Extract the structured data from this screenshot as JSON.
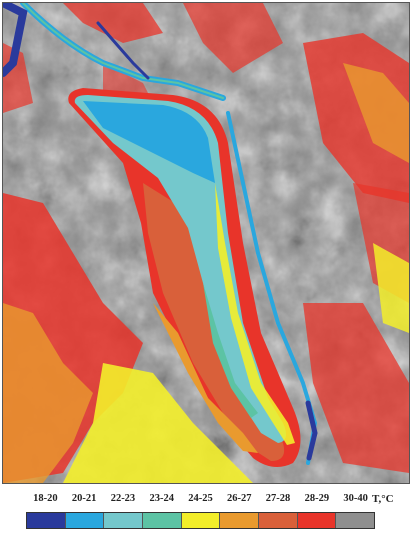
{
  "legend": {
    "unit": "T,°C",
    "classes": [
      {
        "label": "18-20",
        "color": "#2a3a9c"
      },
      {
        "label": "20-21",
        "color": "#2aa7de"
      },
      {
        "label": "22-23",
        "color": "#74c8cc"
      },
      {
        "label": "23-24",
        "color": "#5cc3a4"
      },
      {
        "label": "24-25",
        "color": "#f3ee2a"
      },
      {
        "label": "26-27",
        "color": "#e99a2e"
      },
      {
        "label": "27-28",
        "color": "#d9603a"
      },
      {
        "label": "28-29",
        "color": "#e8342a"
      },
      {
        "label": "30-40",
        "color": "#8f8f8f"
      }
    ]
  }
}
